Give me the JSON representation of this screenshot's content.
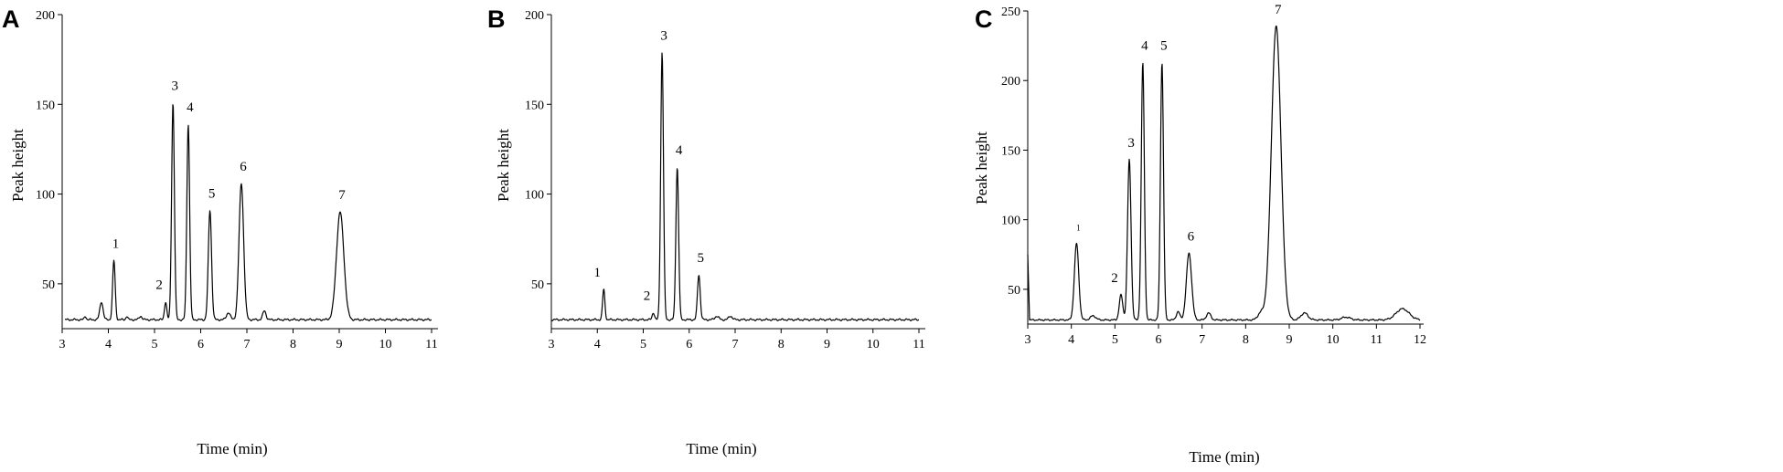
{
  "chart_data": [
    {
      "type": "line",
      "panel_label": "A",
      "xlabel": "Time (min)",
      "ylabel": "Peak height",
      "xlim": [
        3,
        11
      ],
      "ylim": [
        25,
        200
      ],
      "x_ticks": [
        3,
        4,
        5,
        6,
        7,
        8,
        9,
        10,
        11
      ],
      "y_ticks": [
        50,
        100,
        150,
        200
      ],
      "baseline": 30,
      "trace_end": 11,
      "series": [
        {
          "peaks": [
            {
              "x": 3.5,
              "h": 32,
              "w": 0.02
            },
            {
              "x": 3.85,
              "h": 40,
              "w": 0.035
            },
            {
              "x": 4.12,
              "h": 63,
              "w": 0.028,
              "label": "1"
            },
            {
              "x": 4.4,
              "h": 32,
              "w": 0.02
            },
            {
              "x": 4.7,
              "h": 32,
              "w": 0.03
            },
            {
              "x": 5.24,
              "h": 40,
              "w": 0.025,
              "label": "2"
            },
            {
              "x": 5.4,
              "h": 151,
              "w": 0.03,
              "label": "3"
            },
            {
              "x": 5.73,
              "h": 139,
              "w": 0.03,
              "label": "4"
            },
            {
              "x": 6.2,
              "h": 91,
              "w": 0.035,
              "label": "5"
            },
            {
              "x": 6.6,
              "h": 34,
              "w": 0.04
            },
            {
              "x": 6.88,
              "h": 106,
              "w": 0.05,
              "label": "6"
            },
            {
              "x": 7.38,
              "h": 35,
              "w": 0.035
            },
            {
              "x": 9.02,
              "h": 90,
              "w": 0.08,
              "label": "7"
            }
          ]
        }
      ]
    },
    {
      "type": "line",
      "panel_label": "B",
      "xlabel": "Time (min)",
      "ylabel": "Peak height",
      "xlim": [
        3,
        11
      ],
      "ylim": [
        25,
        200
      ],
      "x_ticks": [
        3,
        4,
        5,
        6,
        7,
        8,
        9,
        10,
        11
      ],
      "y_ticks": [
        50,
        100,
        150,
        200
      ],
      "baseline": 30,
      "trace_end": 11,
      "series": [
        {
          "peaks": [
            {
              "x": 4.14,
              "h": 47,
              "w": 0.025,
              "label": "1"
            },
            {
              "x": 5.22,
              "h": 34,
              "w": 0.025,
              "label": "2"
            },
            {
              "x": 5.41,
              "h": 179,
              "w": 0.03,
              "label": "3"
            },
            {
              "x": 5.74,
              "h": 115,
              "w": 0.03,
              "label": "4"
            },
            {
              "x": 6.21,
              "h": 55,
              "w": 0.03,
              "label": "5"
            },
            {
              "x": 6.6,
              "h": 32,
              "w": 0.04
            },
            {
              "x": 6.9,
              "h": 32,
              "w": 0.04
            }
          ]
        }
      ]
    },
    {
      "type": "line",
      "panel_label": "C",
      "xlabel": "Time (min)",
      "ylabel": "Peak height",
      "xlim": [
        3,
        12
      ],
      "ylim": [
        25,
        250
      ],
      "x_ticks": [
        3,
        4,
        5,
        6,
        7,
        8,
        9,
        10,
        11,
        12
      ],
      "y_ticks": [
        50,
        100,
        150,
        200,
        250
      ],
      "baseline": 28,
      "trace_end": 12,
      "start_spike": 75,
      "series": [
        {
          "peaks": [
            {
              "x": 4.12,
              "h": 83,
              "w": 0.05,
              "label": "1",
              "small": true
            },
            {
              "x": 4.5,
              "h": 31,
              "w": 0.06
            },
            {
              "x": 5.14,
              "h": 46,
              "w": 0.04,
              "label": "2"
            },
            {
              "x": 5.33,
              "h": 143,
              "w": 0.04,
              "label": "3"
            },
            {
              "x": 5.64,
              "h": 213,
              "w": 0.035,
              "label": "4"
            },
            {
              "x": 6.08,
              "h": 213,
              "w": 0.035,
              "label": "5"
            },
            {
              "x": 6.45,
              "h": 34,
              "w": 0.04
            },
            {
              "x": 6.7,
              "h": 76,
              "w": 0.06,
              "label": "6"
            },
            {
              "x": 7.15,
              "h": 33,
              "w": 0.05
            },
            {
              "x": 8.35,
              "h": 33,
              "w": 0.07
            },
            {
              "x": 8.7,
              "h": 239,
              "w": 0.11,
              "label": "7"
            },
            {
              "x": 9.35,
              "h": 33,
              "w": 0.08
            },
            {
              "x": 10.3,
              "h": 30,
              "w": 0.1
            },
            {
              "x": 11.6,
              "h": 36,
              "w": 0.15
            }
          ]
        }
      ]
    }
  ]
}
